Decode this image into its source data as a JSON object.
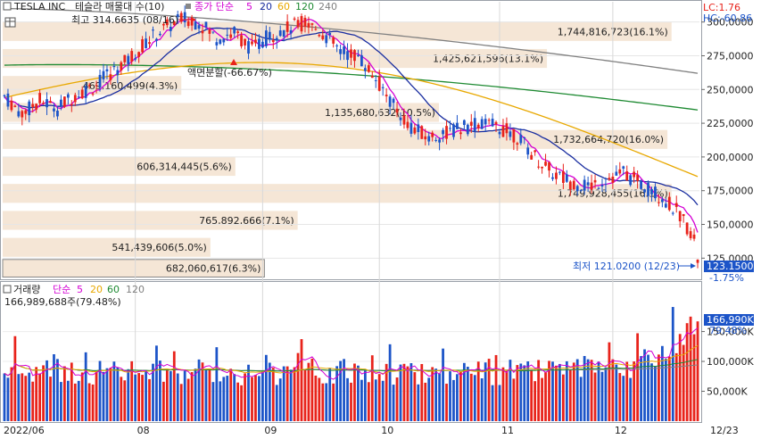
{
  "header": {
    "ticker": "TESLA INC",
    "chart_label": "테슬라 매물대 수(10)",
    "ma_label": "종가 단순",
    "ma_periods": [
      "5",
      "20",
      "60",
      "120",
      "240"
    ],
    "lc": "LC:1.76",
    "hc": "HC:-60.86"
  },
  "annotations": {
    "high": "최고 314.6635 (08/16)",
    "low": "최저 121.0200 (12/23)",
    "split": "액면분할(-66.67%)"
  },
  "price_tag": {
    "value": "123.1500",
    "change": "-1.75%"
  },
  "volume_header": {
    "label": "거래량",
    "ma_label": "단순",
    "ma_periods": [
      "5",
      "20",
      "60",
      "120"
    ],
    "value_text": "166,989,688주(79.48%)"
  },
  "volume_tag": {
    "value": "166,990K",
    "change": "79.48%"
  },
  "colors": {
    "up": "#e8231b",
    "down": "#1c54c8",
    "profile": "#f5e6d6",
    "ma5": "#d400d4",
    "ma20": "#1a2ea0",
    "ma60": "#e8a800",
    "ma120": "#1e8a32",
    "ma240": "#808080",
    "tag_bg": "#1c54c8"
  },
  "chart_data": {
    "type": "candlestick",
    "ylim": [
      110,
      315
    ],
    "y_ticks": [
      "300,0000",
      "275,0000",
      "250,0000",
      "225,0000",
      "200,0000",
      "175,0000",
      "150,0000",
      "125,0000"
    ],
    "y_tick_values": [
      300,
      275,
      250,
      225,
      200,
      175,
      150,
      125
    ],
    "x_ticks": [
      "2022/06",
      "08",
      "09",
      "10",
      "11",
      "12",
      "12/23"
    ],
    "x_tick_index": [
      0,
      37,
      73,
      106,
      140,
      172,
      196
    ],
    "volume_profile": [
      {
        "price_low": 286,
        "price_high": 300,
        "label": "1,744,816,723(16.1%)",
        "pct": 16.1
      },
      {
        "price_low": 266,
        "price_high": 280,
        "label": "1,425,621,596(13.1%)",
        "pct": 13.1
      },
      {
        "price_low": 246,
        "price_high": 260,
        "label": "469,160,499(4.3%)",
        "pct": 4.3
      },
      {
        "price_low": 226,
        "price_high": 240,
        "label": "1,135,680,632(10.5%)",
        "pct": 10.5
      },
      {
        "price_low": 206,
        "price_high": 220,
        "label": "1,732,664,720(16.0%)",
        "pct": 16.0
      },
      {
        "price_low": 186,
        "price_high": 200,
        "label": "606,314,445(5.6%)",
        "pct": 5.6
      },
      {
        "price_low": 166,
        "price_high": 180,
        "label": "1,749,928,455(16.1%)",
        "pct": 16.1
      },
      {
        "price_low": 146,
        "price_high": 160,
        "label": "765,892,666(7.1%)",
        "pct": 7.1
      },
      {
        "price_low": 126,
        "price_high": 140,
        "label": "541,439,606(5.0%)",
        "pct": 5.0
      },
      {
        "price_low": 111,
        "price_high": 124,
        "label": "682,060,617(6.3%)",
        "pct": 6.3
      }
    ],
    "volume_axis": {
      "ylim": [
        0,
        230
      ],
      "unit": "K (millions shown as K)",
      "ticks": [
        "150,000K",
        "100,000K",
        "50,000K"
      ],
      "tick_values": [
        150,
        100,
        50
      ]
    }
  }
}
